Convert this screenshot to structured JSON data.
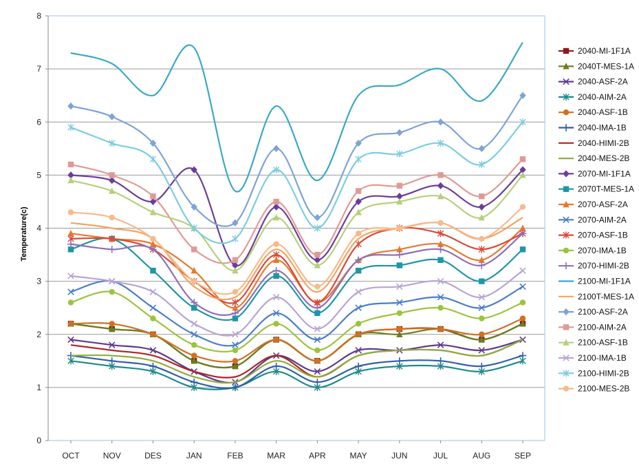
{
  "chart_data": {
    "type": "line",
    "title": "",
    "xlabel": "",
    "ylabel": "Temperature(c)",
    "ylim": [
      0,
      8
    ],
    "yticks": [
      0,
      1,
      2,
      3,
      4,
      5,
      6,
      7,
      8
    ],
    "grid": true,
    "legend": "right",
    "smooth": true,
    "categories": [
      "OCT",
      "NOV",
      "DES",
      "JAN",
      "FEB",
      "MAR",
      "APR",
      "MAY",
      "JUN",
      "JUL",
      "AUG",
      "SEP"
    ],
    "series": [
      {
        "name": "2040-MI-1F1A",
        "color": "#8B1A1A",
        "marker": "square",
        "values": [
          2.2,
          2.1,
          2.0,
          1.5,
          1.4,
          1.9,
          1.5,
          2.0,
          2.1,
          2.1,
          1.9,
          2.2
        ]
      },
      {
        "name": "2040T-MES-1A",
        "color": "#6B7F1F",
        "marker": "triangle",
        "values": [
          2.2,
          2.1,
          2.0,
          1.5,
          1.4,
          1.9,
          1.5,
          2.0,
          2.0,
          2.1,
          1.9,
          2.2
        ]
      },
      {
        "name": "2040-ASF-2A",
        "color": "#5E3A8C",
        "marker": "x",
        "values": [
          1.9,
          1.8,
          1.7,
          1.3,
          1.1,
          1.6,
          1.3,
          1.7,
          1.7,
          1.8,
          1.7,
          1.9
        ]
      },
      {
        "name": "2040-AIM-2A",
        "color": "#1E8A8A",
        "marker": "asterisk",
        "values": [
          1.5,
          1.4,
          1.3,
          1.0,
          1.0,
          1.3,
          1.0,
          1.3,
          1.4,
          1.4,
          1.3,
          1.5
        ]
      },
      {
        "name": "2040-ASF-1B",
        "color": "#D07020",
        "marker": "circle",
        "values": [
          2.2,
          2.2,
          2.0,
          1.6,
          1.5,
          1.9,
          1.5,
          2.0,
          2.1,
          2.1,
          2.0,
          2.3
        ]
      },
      {
        "name": "2040-IMA-1B",
        "color": "#2F5FA8",
        "marker": "plus",
        "values": [
          1.6,
          1.5,
          1.4,
          1.1,
          1.0,
          1.4,
          1.1,
          1.4,
          1.5,
          1.5,
          1.4,
          1.6
        ]
      },
      {
        "name": "2040-HIMI-2B",
        "color": "#B02424",
        "marker": "none",
        "values": [
          1.8,
          1.7,
          1.6,
          1.3,
          1.2,
          1.6,
          1.2,
          1.6,
          1.7,
          1.7,
          1.6,
          1.9
        ]
      },
      {
        "name": "2040-MES-2B",
        "color": "#8FAE3A",
        "marker": "none",
        "values": [
          1.6,
          1.6,
          1.5,
          1.2,
          1.1,
          1.5,
          1.2,
          1.6,
          1.7,
          1.7,
          1.6,
          1.9
        ]
      },
      {
        "name": "2070-MI-1F1A",
        "color": "#6A3D9A",
        "marker": "diamond",
        "values": [
          5.0,
          4.9,
          4.5,
          5.1,
          3.3,
          4.4,
          3.4,
          4.5,
          4.6,
          4.8,
          4.4,
          5.1
        ]
      },
      {
        "name": "2070T-MES-1A",
        "color": "#1F95A8",
        "marker": "square",
        "values": [
          3.6,
          3.8,
          3.2,
          2.5,
          2.3,
          3.1,
          2.4,
          3.2,
          3.3,
          3.4,
          3.0,
          3.6
        ]
      },
      {
        "name": "2070-ASF-2A",
        "color": "#E8782A",
        "marker": "triangle",
        "values": [
          3.9,
          3.8,
          3.7,
          3.2,
          2.5,
          3.4,
          2.6,
          3.4,
          3.6,
          3.7,
          3.4,
          4.0
        ]
      },
      {
        "name": "2070-AIM-2A",
        "color": "#4A7EC9",
        "marker": "x",
        "values": [
          2.8,
          3.0,
          2.5,
          2.0,
          1.8,
          2.4,
          1.9,
          2.5,
          2.6,
          2.7,
          2.5,
          2.9
        ]
      },
      {
        "name": "2070-ASF-1B",
        "color": "#D84A3A",
        "marker": "asterisk",
        "values": [
          3.8,
          3.8,
          3.6,
          3.0,
          2.6,
          3.5,
          2.6,
          3.7,
          4.0,
          3.9,
          3.6,
          3.9
        ]
      },
      {
        "name": "2070-IMA-1B",
        "color": "#9BC43C",
        "marker": "circle",
        "values": [
          2.6,
          2.8,
          2.3,
          1.8,
          1.7,
          2.2,
          1.7,
          2.2,
          2.4,
          2.5,
          2.3,
          2.6
        ]
      },
      {
        "name": "2070-HIMI-2B",
        "color": "#8E6FB8",
        "marker": "plus",
        "values": [
          3.7,
          3.6,
          3.6,
          2.6,
          2.4,
          3.2,
          2.5,
          3.4,
          3.5,
          3.6,
          3.3,
          3.9
        ]
      },
      {
        "name": "2100-MI-1F1A",
        "color": "#37A9C7",
        "marker": "none",
        "values": [
          7.3,
          7.1,
          6.5,
          7.4,
          4.7,
          6.3,
          4.9,
          6.5,
          6.7,
          7.0,
          6.4,
          7.5
        ]
      },
      {
        "name": "2100T-MES-1A",
        "color": "#F4A460",
        "marker": "none",
        "values": [
          4.1,
          4.0,
          3.8,
          2.9,
          2.7,
          3.6,
          2.8,
          3.8,
          4.0,
          4.1,
          3.8,
          4.2
        ]
      },
      {
        "name": "2100-ASF-2A",
        "color": "#7EA3D6",
        "marker": "diamond",
        "values": [
          6.3,
          6.1,
          5.6,
          4.4,
          4.1,
          5.5,
          4.2,
          5.6,
          5.8,
          6.0,
          5.5,
          6.5
        ]
      },
      {
        "name": "2100-AIM-2A",
        "color": "#E09A96",
        "marker": "square",
        "values": [
          5.2,
          5.0,
          4.6,
          3.6,
          3.4,
          4.5,
          3.5,
          4.7,
          4.8,
          5.0,
          4.6,
          5.3
        ]
      },
      {
        "name": "2100-ASF-1B",
        "color": "#B5D07A",
        "marker": "triangle",
        "values": [
          4.9,
          4.7,
          4.3,
          4.0,
          3.2,
          4.2,
          3.3,
          4.3,
          4.5,
          4.6,
          4.2,
          5.0
        ]
      },
      {
        "name": "2100-IMA-1B",
        "color": "#B7A4D4",
        "marker": "x",
        "values": [
          3.1,
          3.0,
          2.8,
          2.2,
          2.0,
          2.7,
          2.1,
          2.8,
          2.9,
          3.0,
          2.7,
          3.2
        ]
      },
      {
        "name": "2100-HIMI-2B",
        "color": "#7CCCE0",
        "marker": "asterisk",
        "values": [
          5.9,
          5.6,
          5.3,
          4.0,
          3.8,
          5.1,
          4.0,
          5.3,
          5.4,
          5.6,
          5.2,
          6.0
        ]
      },
      {
        "name": "2100-MES-2B",
        "color": "#F9B98A",
        "marker": "circle",
        "values": [
          4.3,
          4.2,
          3.8,
          3.0,
          2.8,
          3.7,
          2.9,
          3.9,
          4.0,
          4.1,
          3.8,
          4.4
        ]
      }
    ]
  }
}
